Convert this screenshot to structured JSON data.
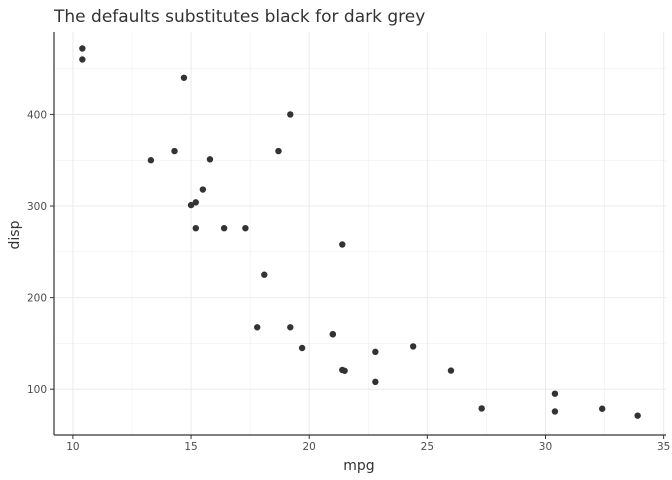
{
  "chart_data": {
    "type": "scatter",
    "title": "The defaults substitutes black for dark grey",
    "xlabel": "mpg",
    "ylabel": "disp",
    "xlim": [
      9.2,
      35.1
    ],
    "ylim": [
      50,
      490
    ],
    "xticks": [
      10,
      15,
      20,
      25,
      30,
      35
    ],
    "yticks": [
      100,
      200,
      300,
      400
    ],
    "grid": true,
    "point_color": "#333333",
    "grid_color": "#ebebeb",
    "axis_color": "#333333",
    "points": [
      {
        "x": 21.0,
        "y": 160
      },
      {
        "x": 21.0,
        "y": 160
      },
      {
        "x": 22.8,
        "y": 108
      },
      {
        "x": 21.4,
        "y": 258
      },
      {
        "x": 18.7,
        "y": 360
      },
      {
        "x": 18.1,
        "y": 225
      },
      {
        "x": 14.3,
        "y": 360
      },
      {
        "x": 24.4,
        "y": 146.7
      },
      {
        "x": 22.8,
        "y": 140.8
      },
      {
        "x": 19.2,
        "y": 167.6
      },
      {
        "x": 17.8,
        "y": 167.6
      },
      {
        "x": 16.4,
        "y": 275.8
      },
      {
        "x": 17.3,
        "y": 275.8
      },
      {
        "x": 15.2,
        "y": 275.8
      },
      {
        "x": 10.4,
        "y": 472
      },
      {
        "x": 10.4,
        "y": 460
      },
      {
        "x": 14.7,
        "y": 440
      },
      {
        "x": 32.4,
        "y": 78.7
      },
      {
        "x": 30.4,
        "y": 75.7
      },
      {
        "x": 33.9,
        "y": 71.1
      },
      {
        "x": 21.5,
        "y": 120.1
      },
      {
        "x": 15.5,
        "y": 318
      },
      {
        "x": 15.2,
        "y": 304
      },
      {
        "x": 13.3,
        "y": 350
      },
      {
        "x": 19.2,
        "y": 400
      },
      {
        "x": 27.3,
        "y": 79
      },
      {
        "x": 26.0,
        "y": 120.3
      },
      {
        "x": 30.4,
        "y": 95.1
      },
      {
        "x": 15.8,
        "y": 351
      },
      {
        "x": 19.7,
        "y": 145
      },
      {
        "x": 15.0,
        "y": 301
      },
      {
        "x": 21.4,
        "y": 121
      }
    ]
  }
}
